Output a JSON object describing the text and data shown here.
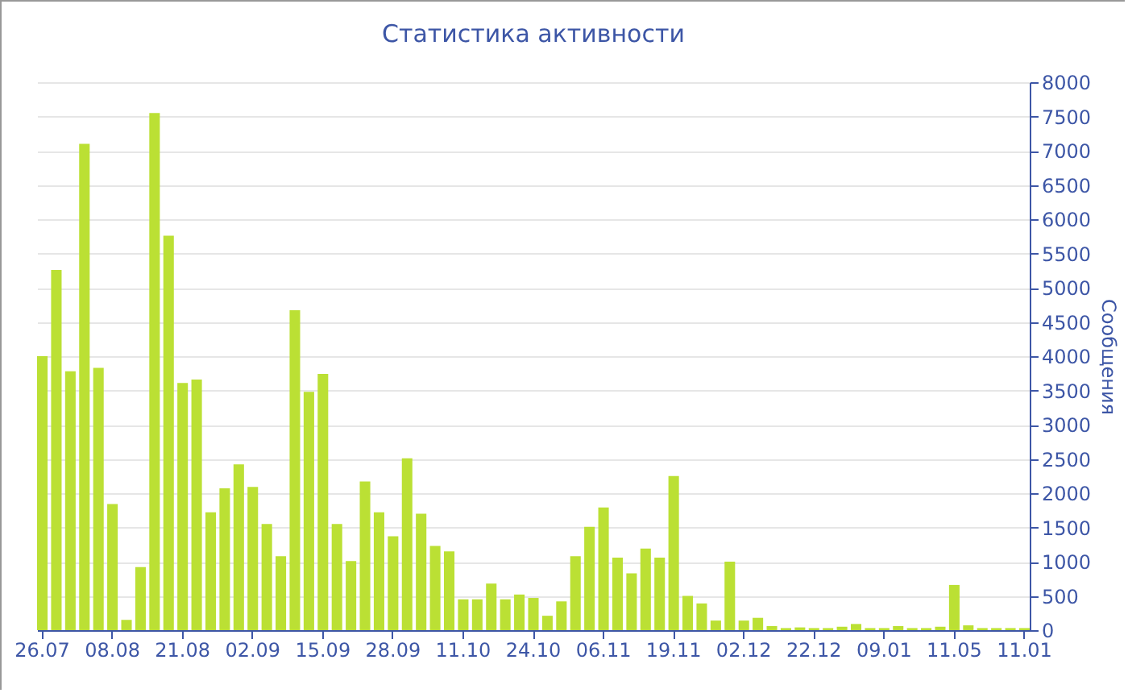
{
  "chart_data": {
    "type": "bar",
    "title": "Статистика активности",
    "ylabel": "Сообщения",
    "categories": [
      "26.07",
      null,
      null,
      null,
      null,
      "08.08",
      null,
      null,
      null,
      null,
      "21.08",
      null,
      null,
      null,
      null,
      "02.09",
      null,
      null,
      null,
      null,
      "15.09",
      null,
      null,
      null,
      null,
      "28.09",
      null,
      null,
      null,
      null,
      "11.10",
      null,
      null,
      null,
      null,
      "24.10",
      null,
      null,
      null,
      null,
      "06.11",
      null,
      null,
      null,
      null,
      "19.11",
      null,
      null,
      null,
      null,
      "02.12",
      null,
      null,
      null,
      null,
      "22.12",
      null,
      null,
      null,
      null,
      "09.01",
      null,
      null,
      null,
      null,
      "11.05",
      null,
      null,
      null,
      null,
      "11.01"
    ],
    "values": [
      4000,
      5260,
      3780,
      7100,
      3830,
      1840,
      150,
      920,
      7550,
      5760,
      3610,
      3660,
      1720,
      2070,
      2420,
      2090,
      1550,
      1080,
      4670,
      3480,
      3740,
      1550,
      1010,
      2170,
      1720,
      1370,
      2510,
      1700,
      1230,
      1150,
      450,
      450,
      680,
      450,
      520,
      470,
      210,
      420,
      1080,
      1510,
      1790,
      1060,
      830,
      1190,
      1060,
      2250,
      500,
      390,
      140,
      1000,
      140,
      180,
      60,
      30,
      40,
      30,
      30,
      50,
      90,
      30,
      30,
      60,
      30,
      30,
      50,
      660,
      70,
      30,
      30,
      30,
      30
    ],
    "color": "#bbe034",
    "ylim": [
      0,
      8000
    ],
    "yticks": [
      0,
      500,
      1000,
      1500,
      2000,
      2500,
      3000,
      3500,
      4000,
      4500,
      5000,
      5500,
      6000,
      6500,
      7000,
      7500,
      8000
    ],
    "grid": "y"
  }
}
